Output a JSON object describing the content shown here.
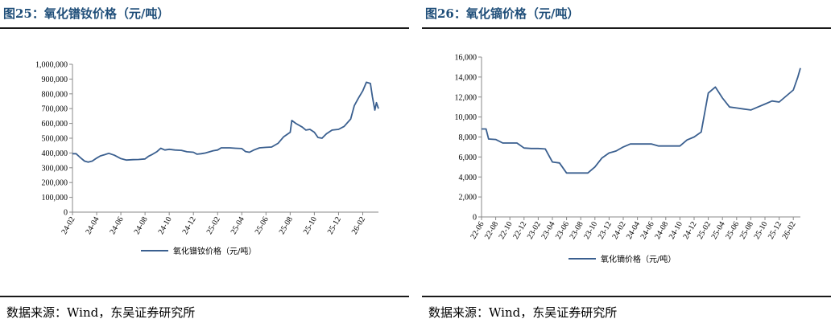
{
  "panels": [
    {
      "title": "图25：氧化镨钕价格（元/吨）",
      "source": "数据来源：Wind，东吴证券研究所"
    },
    {
      "title": "图26：氧化镝价格（元/吨）",
      "source": "数据来源：Wind，东吴证券研究所"
    }
  ],
  "chart_data": [
    {
      "type": "line",
      "title": "",
      "xlabel": "",
      "ylabel": "",
      "ylim": [
        0,
        1000000
      ],
      "y_ticks": [
        0,
        100000,
        200000,
        300000,
        400000,
        500000,
        600000,
        700000,
        800000,
        900000,
        1000000
      ],
      "y_tick_labels": [
        "0",
        "100,000",
        "200,000",
        "300,000",
        "400,000",
        "500,000",
        "600,000",
        "700,000",
        "800,000",
        "900,000",
        "1,000,000"
      ],
      "x_tick_labels": [
        "24-02",
        "24-04",
        "24-06",
        "24-08",
        "24-10",
        "24-12",
        "25-02",
        "25-04",
        "25-06",
        "25-08",
        "25-10",
        "25-12",
        "26-02"
      ],
      "grid": false,
      "legend_position": "bottom",
      "series": [
        {
          "name": "氧化镨钕价格（元/吨）",
          "color": "#3a5f8f",
          "points": [
            [
              "24-02",
              395000
            ],
            [
              "24-02-10",
              395000
            ],
            [
              "24-02-20",
              370000
            ],
            [
              "24-03",
              345000
            ],
            [
              "24-03-10",
              338000
            ],
            [
              "24-03-20",
              345000
            ],
            [
              "24-04",
              365000
            ],
            [
              "24-04-10",
              380000
            ],
            [
              "24-04-20",
              388000
            ],
            [
              "24-05",
              398000
            ],
            [
              "24-05-15",
              385000
            ],
            [
              "24-06",
              362000
            ],
            [
              "24-06-15",
              352000
            ],
            [
              "24-07",
              355000
            ],
            [
              "24-07-15",
              356000
            ],
            [
              "24-08",
              360000
            ],
            [
              "24-08-10",
              378000
            ],
            [
              "24-08-20",
              392000
            ],
            [
              "24-09",
              410000
            ],
            [
              "24-09-10",
              432000
            ],
            [
              "24-09-20",
              420000
            ],
            [
              "24-10",
              425000
            ],
            [
              "24-10-15",
              420000
            ],
            [
              "24-11",
              418000
            ],
            [
              "24-11-15",
              408000
            ],
            [
              "24-12",
              405000
            ],
            [
              "24-12-10",
              392000
            ],
            [
              "24-12-20",
              395000
            ],
            [
              "25-01",
              400000
            ],
            [
              "25-01-20",
              415000
            ],
            [
              "25-02",
              420000
            ],
            [
              "25-02-10",
              435000
            ],
            [
              "25-03",
              435000
            ],
            [
              "25-03-15",
              432000
            ],
            [
              "25-04",
              430000
            ],
            [
              "25-04-10",
              410000
            ],
            [
              "25-04-20",
              405000
            ],
            [
              "25-05",
              420000
            ],
            [
              "25-05-15",
              435000
            ],
            [
              "25-06",
              438000
            ],
            [
              "25-06-15",
              440000
            ],
            [
              "25-07",
              465000
            ],
            [
              "25-07-15",
              510000
            ],
            [
              "25-08",
              540000
            ],
            [
              "25-08-05",
              620000
            ],
            [
              "25-08-15",
              600000
            ],
            [
              "25-09",
              575000
            ],
            [
              "25-09-10",
              555000
            ],
            [
              "25-09-20",
              560000
            ],
            [
              "25-10",
              540000
            ],
            [
              "25-10-10",
              505000
            ],
            [
              "25-10-20",
              500000
            ],
            [
              "25-11",
              530000
            ],
            [
              "25-11-15",
              555000
            ],
            [
              "25-12",
              560000
            ],
            [
              "25-12-15",
              580000
            ],
            [
              "26-01",
              630000
            ],
            [
              "26-01-10",
              720000
            ],
            [
              "26-01-20",
              770000
            ],
            [
              "26-02",
              820000
            ],
            [
              "26-02-10",
              878000
            ],
            [
              "26-02-20",
              870000
            ],
            [
              "26-02-25",
              780000
            ],
            [
              "26-03",
              690000
            ],
            [
              "26-03-05",
              740000
            ],
            [
              "26-03-10",
              700000
            ]
          ]
        }
      ]
    },
    {
      "type": "line",
      "title": "",
      "xlabel": "",
      "ylabel": "",
      "ylim": [
        0,
        16000
      ],
      "y_ticks": [
        0,
        2000,
        4000,
        6000,
        8000,
        10000,
        12000,
        14000,
        16000
      ],
      "y_tick_labels": [
        "0",
        "2,000",
        "4,000",
        "6,000",
        "8,000",
        "10,000",
        "12,000",
        "14,000",
        "16,000"
      ],
      "x_tick_labels": [
        "22-06",
        "22-08",
        "22-10",
        "22-12",
        "23-02",
        "23-04",
        "23-06",
        "23-08",
        "23-10",
        "23-12",
        "24-02",
        "24-04",
        "24-06",
        "24-08",
        "24-10",
        "24-12",
        "25-02",
        "25-04",
        "25-06",
        "25-08",
        "25-10",
        "25-12",
        "26-02"
      ],
      "grid": false,
      "legend_position": "bottom",
      "series": [
        {
          "name": "氧化镝价格（元/吨）",
          "color": "#3a5f8f",
          "points": [
            [
              "22-06",
              8800
            ],
            [
              "22-06-20",
              8800
            ],
            [
              "22-07",
              7800
            ],
            [
              "22-08",
              7750
            ],
            [
              "22-09",
              7400
            ],
            [
              "22-10",
              7400
            ],
            [
              "22-11",
              7400
            ],
            [
              "22-12",
              6900
            ],
            [
              "23-01",
              6850
            ],
            [
              "23-02",
              6850
            ],
            [
              "23-03",
              6800
            ],
            [
              "23-04",
              5500
            ],
            [
              "23-05",
              5400
            ],
            [
              "23-06",
              4400
            ],
            [
              "23-07",
              4400
            ],
            [
              "23-08",
              4400
            ],
            [
              "23-09",
              4400
            ],
            [
              "23-10",
              5000
            ],
            [
              "23-11",
              5900
            ],
            [
              "23-12",
              6400
            ],
            [
              "24-01",
              6600
            ],
            [
              "24-02",
              7000
            ],
            [
              "24-03",
              7300
            ],
            [
              "24-04",
              7300
            ],
            [
              "24-05",
              7300
            ],
            [
              "24-06",
              7300
            ],
            [
              "24-07",
              7100
            ],
            [
              "24-08",
              7100
            ],
            [
              "24-09",
              7100
            ],
            [
              "24-10",
              7100
            ],
            [
              "24-11",
              7700
            ],
            [
              "24-12",
              8000
            ],
            [
              "25-01",
              8500
            ],
            [
              "25-02",
              12400
            ],
            [
              "25-03",
              13000
            ],
            [
              "25-04",
              11900
            ],
            [
              "25-05",
              11000
            ],
            [
              "25-06",
              10900
            ],
            [
              "25-07",
              10800
            ],
            [
              "25-08",
              10700
            ],
            [
              "25-09",
              11000
            ],
            [
              "25-10",
              11300
            ],
            [
              "25-11",
              11600
            ],
            [
              "25-12",
              11500
            ],
            [
              "26-01",
              12100
            ],
            [
              "26-02",
              12700
            ],
            [
              "26-02-20",
              14000
            ],
            [
              "26-03",
              14900
            ]
          ]
        }
      ]
    }
  ]
}
